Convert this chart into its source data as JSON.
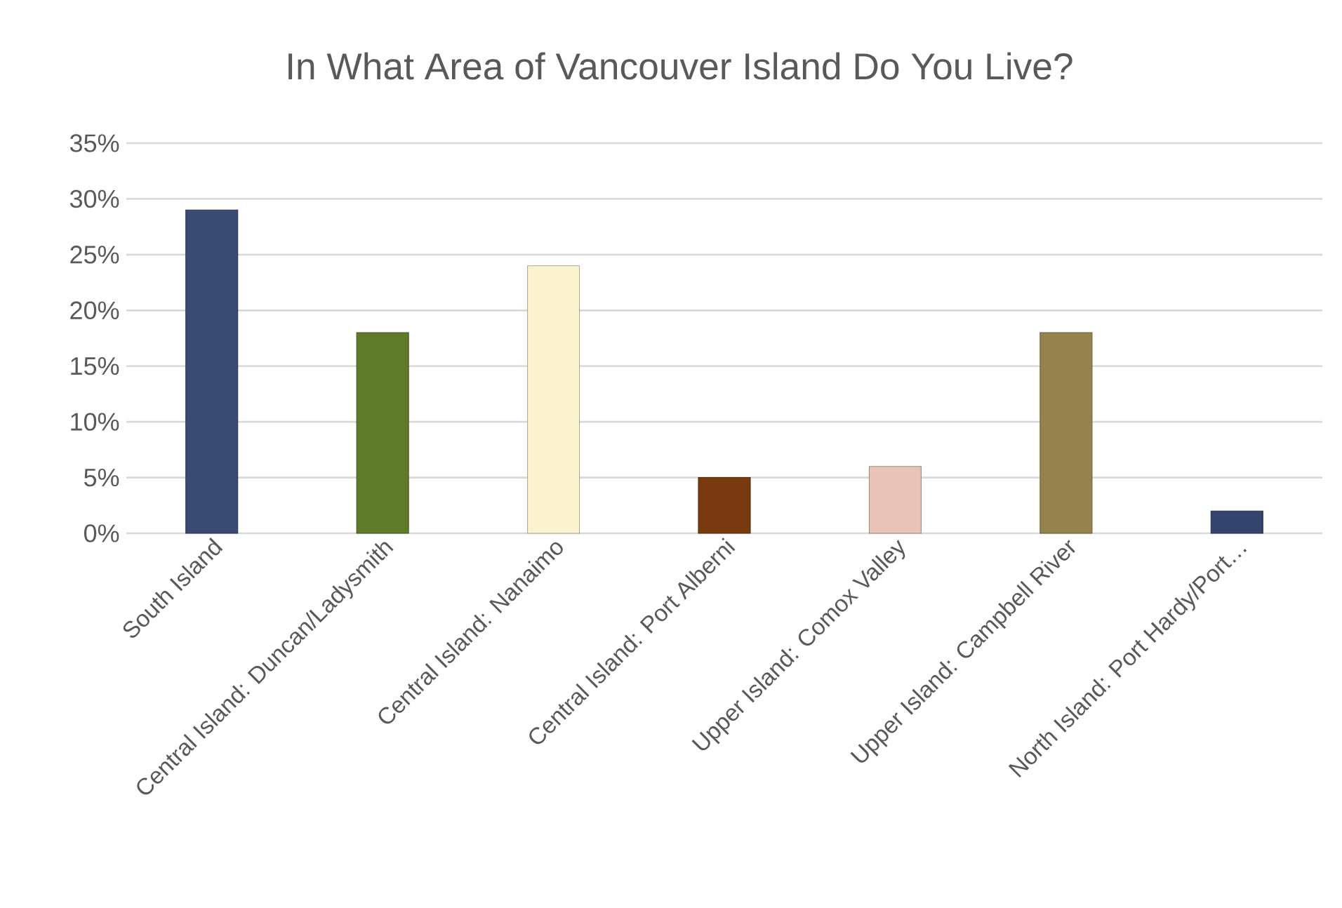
{
  "chart_data": {
    "type": "bar",
    "title": "In What Area of Vancouver Island Do You Live?",
    "categories": [
      "South Island",
      "Central Island: Duncan/Ladysmith",
      "Central Island: Nanaimo",
      "Central Island: Port Alberni",
      "Upper Island: Comox Valley",
      "Upper Island: Campbell River",
      "North Island: Port Hardy/Port…"
    ],
    "values": [
      29,
      18,
      24,
      5,
      6,
      18,
      2
    ],
    "colors": [
      "#3a4a70",
      "#5f7a29",
      "#fbf3cf",
      "#7a3a10",
      "#e8c4b8",
      "#94834c",
      "#34446c"
    ],
    "ylim": [
      0,
      35
    ],
    "yticks": [
      {
        "value": 0,
        "label": "0%"
      },
      {
        "value": 5,
        "label": "5%"
      },
      {
        "value": 10,
        "label": "10%"
      },
      {
        "value": 15,
        "label": "15%"
      },
      {
        "value": 20,
        "label": "20%"
      },
      {
        "value": 25,
        "label": "25%"
      },
      {
        "value": 30,
        "label": "30%"
      },
      {
        "value": 35,
        "label": "35%"
      }
    ],
    "grid": "y"
  }
}
